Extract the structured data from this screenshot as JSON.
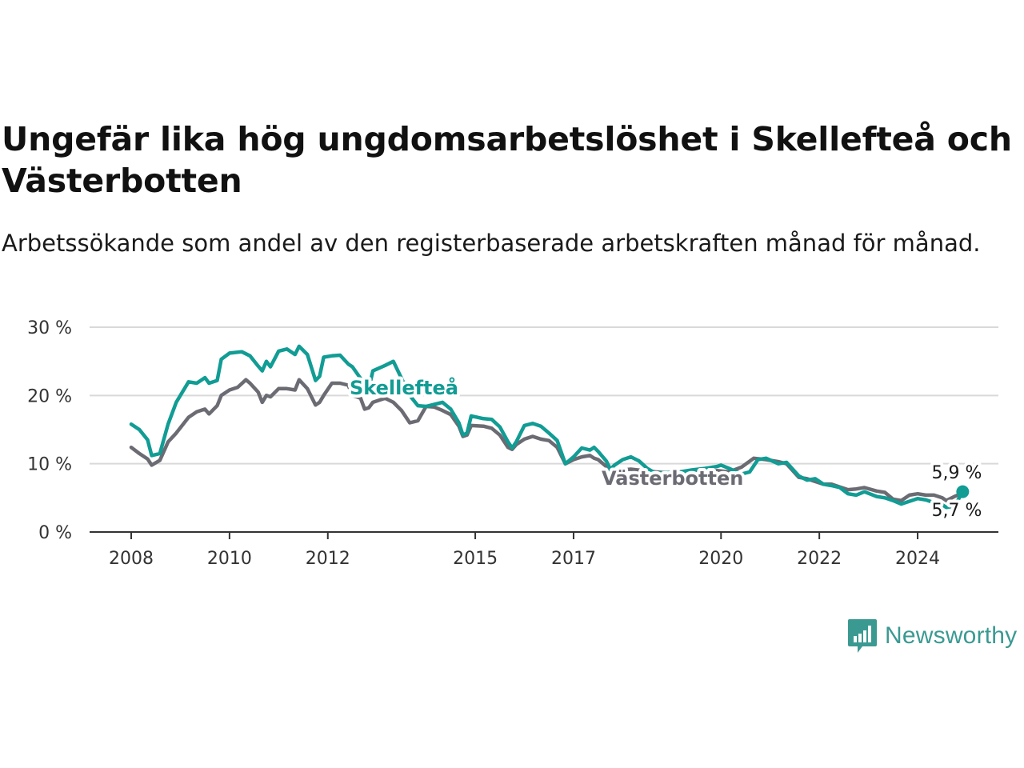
{
  "title": "Ungefär lika hög ungdomsarbetslöshet i Skellefteå och Västerbotten",
  "subtitle": "Arbetssökande som andel av den registerbaserade arbetskraften månad för månad.",
  "logo": {
    "icon": "newsworthy-logo-icon",
    "text": "Newsworthy"
  },
  "colors": {
    "skelleftea": "#119c94",
    "vasterbotten": "#6b6b73",
    "grid": "#d9d9d9",
    "axis": "#333333"
  },
  "chart_data": {
    "type": "line",
    "ylim": [
      0,
      30
    ],
    "y_ticks": [
      0,
      10,
      20,
      30
    ],
    "y_tick_labels": [
      "0 %",
      "10 %",
      "20 %",
      "30 %"
    ],
    "x_ticks": [
      2008,
      2010,
      2012,
      2015,
      2017,
      2020,
      2022,
      2024
    ],
    "x_tick_labels": [
      "2008",
      "2010",
      "2012",
      "2015",
      "2017",
      "2020",
      "2022",
      "2024"
    ],
    "grid": true,
    "series": [
      {
        "name": "Skellefteå",
        "color": "#119c94",
        "end_label": "5,9 %",
        "points": [
          [
            "2008-01",
            15.8
          ],
          [
            "2008-03",
            15.0
          ],
          [
            "2008-05",
            13.5
          ],
          [
            "2008-06",
            11.2
          ],
          [
            "2008-08",
            11.5
          ],
          [
            "2008-10",
            15.8
          ],
          [
            "2008-12",
            19.0
          ],
          [
            "2009-03",
            22.0
          ],
          [
            "2009-05",
            21.8
          ],
          [
            "2009-07",
            22.6
          ],
          [
            "2009-08",
            21.8
          ],
          [
            "2009-10",
            22.2
          ],
          [
            "2009-11",
            25.3
          ],
          [
            "2010-01",
            26.2
          ],
          [
            "2010-04",
            26.4
          ],
          [
            "2010-06",
            25.8
          ],
          [
            "2010-08",
            24.3
          ],
          [
            "2010-09",
            23.6
          ],
          [
            "2010-10",
            25.0
          ],
          [
            "2010-11",
            24.2
          ],
          [
            "2011-01",
            26.5
          ],
          [
            "2011-03",
            26.8
          ],
          [
            "2011-05",
            26.0
          ],
          [
            "2011-06",
            27.2
          ],
          [
            "2011-08",
            26.0
          ],
          [
            "2011-10",
            22.2
          ],
          [
            "2011-11",
            22.8
          ],
          [
            "2011-12",
            25.6
          ],
          [
            "2012-02",
            25.8
          ],
          [
            "2012-04",
            25.9
          ],
          [
            "2012-06",
            24.6
          ],
          [
            "2012-07",
            24.2
          ],
          [
            "2012-09",
            22.5
          ],
          [
            "2012-10",
            20.6
          ],
          [
            "2012-11",
            21.0
          ],
          [
            "2012-12",
            23.6
          ],
          [
            "2013-03",
            24.4
          ],
          [
            "2013-05",
            25.0
          ],
          [
            "2013-07",
            22.5
          ],
          [
            "2013-09",
            20.0
          ],
          [
            "2013-11",
            18.5
          ],
          [
            "2014-01",
            18.4
          ],
          [
            "2014-03",
            18.7
          ],
          [
            "2014-05",
            19.0
          ],
          [
            "2014-07",
            18.0
          ],
          [
            "2014-09",
            16.0
          ],
          [
            "2014-10",
            14.2
          ],
          [
            "2014-11",
            14.5
          ],
          [
            "2014-12",
            17.0
          ],
          [
            "2015-03",
            16.6
          ],
          [
            "2015-05",
            16.5
          ],
          [
            "2015-07",
            15.4
          ],
          [
            "2015-09",
            13.2
          ],
          [
            "2015-10",
            12.3
          ],
          [
            "2015-11",
            13.2
          ],
          [
            "2016-01",
            15.6
          ],
          [
            "2016-03",
            15.9
          ],
          [
            "2016-05",
            15.5
          ],
          [
            "2016-07",
            14.5
          ],
          [
            "2016-09",
            13.4
          ],
          [
            "2016-11",
            10.0
          ],
          [
            "2017-01",
            11.0
          ],
          [
            "2017-03",
            12.3
          ],
          [
            "2017-05",
            12.0
          ],
          [
            "2017-06",
            12.4
          ],
          [
            "2017-07",
            11.8
          ],
          [
            "2017-09",
            10.4
          ],
          [
            "2017-10",
            9.2
          ],
          [
            "2017-11",
            9.8
          ],
          [
            "2018-01",
            10.6
          ],
          [
            "2018-03",
            11.0
          ],
          [
            "2018-05",
            10.4
          ],
          [
            "2018-07",
            9.3
          ],
          [
            "2018-09",
            8.6
          ],
          [
            "2019-03",
            8.8
          ],
          [
            "2019-06",
            9.1
          ],
          [
            "2019-09",
            9.3
          ],
          [
            "2019-12",
            9.6
          ],
          [
            "2020-01",
            9.8
          ],
          [
            "2020-03",
            9.3
          ],
          [
            "2020-06",
            8.5
          ],
          [
            "2020-08",
            8.8
          ],
          [
            "2020-10",
            10.6
          ],
          [
            "2020-12",
            10.8
          ],
          [
            "2021-03",
            10.0
          ],
          [
            "2021-05",
            10.2
          ],
          [
            "2021-08",
            8.2
          ],
          [
            "2021-10",
            7.6
          ],
          [
            "2021-12",
            7.8
          ],
          [
            "2022-02",
            7.0
          ],
          [
            "2022-04",
            6.8
          ],
          [
            "2022-06",
            6.5
          ],
          [
            "2022-08",
            5.6
          ],
          [
            "2022-10",
            5.4
          ],
          [
            "2022-12",
            5.9
          ],
          [
            "2023-03",
            5.2
          ],
          [
            "2023-05",
            5.0
          ],
          [
            "2023-07",
            4.6
          ],
          [
            "2023-09",
            4.1
          ],
          [
            "2023-11",
            4.5
          ],
          [
            "2024-01",
            4.9
          ],
          [
            "2024-03",
            4.7
          ],
          [
            "2024-05",
            4.3
          ],
          [
            "2024-07",
            4.0
          ],
          [
            "2024-08",
            3.6
          ],
          [
            "2024-10",
            3.8
          ],
          [
            "2024-12",
            5.9
          ]
        ]
      },
      {
        "name": "Västerbotten",
        "color": "#6b6b73",
        "end_label": "5,7 %",
        "points": [
          [
            "2008-01",
            12.4
          ],
          [
            "2008-03",
            11.5
          ],
          [
            "2008-05",
            10.7
          ],
          [
            "2008-06",
            9.8
          ],
          [
            "2008-08",
            10.5
          ],
          [
            "2008-10",
            13.2
          ],
          [
            "2008-12",
            14.5
          ],
          [
            "2009-03",
            16.8
          ],
          [
            "2009-05",
            17.6
          ],
          [
            "2009-07",
            18.0
          ],
          [
            "2009-08",
            17.3
          ],
          [
            "2009-10",
            18.5
          ],
          [
            "2009-11",
            20.0
          ],
          [
            "2010-01",
            20.8
          ],
          [
            "2010-03",
            21.2
          ],
          [
            "2010-05",
            22.3
          ],
          [
            "2010-06",
            21.8
          ],
          [
            "2010-08",
            20.5
          ],
          [
            "2010-09",
            19.0
          ],
          [
            "2010-10",
            20.0
          ],
          [
            "2010-11",
            19.8
          ],
          [
            "2011-01",
            21.0
          ],
          [
            "2011-03",
            21.0
          ],
          [
            "2011-05",
            20.8
          ],
          [
            "2011-06",
            22.3
          ],
          [
            "2011-08",
            21.0
          ],
          [
            "2011-10",
            18.6
          ],
          [
            "2011-11",
            19.0
          ],
          [
            "2011-12",
            20.0
          ],
          [
            "2012-02",
            21.8
          ],
          [
            "2012-04",
            21.8
          ],
          [
            "2012-06",
            21.5
          ],
          [
            "2012-07",
            20.0
          ],
          [
            "2012-09",
            19.6
          ],
          [
            "2012-10",
            18.0
          ],
          [
            "2012-11",
            18.2
          ],
          [
            "2012-12",
            19.0
          ],
          [
            "2013-03",
            19.6
          ],
          [
            "2013-05",
            19.0
          ],
          [
            "2013-07",
            17.8
          ],
          [
            "2013-09",
            16.0
          ],
          [
            "2013-11",
            16.3
          ],
          [
            "2014-01",
            18.4
          ],
          [
            "2014-03",
            18.3
          ],
          [
            "2014-05",
            17.8
          ],
          [
            "2014-07",
            17.2
          ],
          [
            "2014-09",
            15.5
          ],
          [
            "2014-10",
            14.0
          ],
          [
            "2014-11",
            14.2
          ],
          [
            "2014-12",
            15.6
          ],
          [
            "2015-03",
            15.5
          ],
          [
            "2015-05",
            15.2
          ],
          [
            "2015-07",
            14.2
          ],
          [
            "2015-09",
            12.4
          ],
          [
            "2015-10",
            12.1
          ],
          [
            "2015-11",
            12.8
          ],
          [
            "2016-01",
            13.6
          ],
          [
            "2016-03",
            14.0
          ],
          [
            "2016-05",
            13.6
          ],
          [
            "2016-07",
            13.4
          ],
          [
            "2016-09",
            12.4
          ],
          [
            "2016-11",
            10.0
          ],
          [
            "2017-01",
            10.6
          ],
          [
            "2017-03",
            11.0
          ],
          [
            "2017-05",
            11.2
          ],
          [
            "2017-06",
            10.8
          ],
          [
            "2017-07",
            10.6
          ],
          [
            "2017-09",
            9.6
          ],
          [
            "2017-10",
            8.6
          ],
          [
            "2017-11",
            9.0
          ],
          [
            "2018-03",
            9.2
          ],
          [
            "2018-06",
            9.0
          ],
          [
            "2018-09",
            8.8
          ],
          [
            "2019-03",
            8.5
          ],
          [
            "2019-06",
            8.6
          ],
          [
            "2019-09",
            8.8
          ],
          [
            "2019-12",
            9.0
          ],
          [
            "2020-03",
            8.8
          ],
          [
            "2020-06",
            9.5
          ],
          [
            "2020-09",
            10.8
          ],
          [
            "2020-12",
            10.6
          ],
          [
            "2021-03",
            10.3
          ],
          [
            "2021-05",
            10.0
          ],
          [
            "2021-08",
            8.0
          ],
          [
            "2021-10",
            7.8
          ],
          [
            "2021-12",
            7.4
          ],
          [
            "2022-02",
            7.0
          ],
          [
            "2022-04",
            7.0
          ],
          [
            "2022-06",
            6.6
          ],
          [
            "2022-08",
            6.2
          ],
          [
            "2022-10",
            6.3
          ],
          [
            "2022-12",
            6.5
          ],
          [
            "2023-03",
            6.0
          ],
          [
            "2023-05",
            5.8
          ],
          [
            "2023-07",
            4.8
          ],
          [
            "2023-09",
            4.6
          ],
          [
            "2023-11",
            5.4
          ],
          [
            "2024-01",
            5.6
          ],
          [
            "2024-03",
            5.4
          ],
          [
            "2024-05",
            5.4
          ],
          [
            "2024-07",
            5.0
          ],
          [
            "2024-08",
            4.6
          ],
          [
            "2024-10",
            5.2
          ],
          [
            "2024-12",
            5.7
          ]
        ]
      }
    ]
  }
}
